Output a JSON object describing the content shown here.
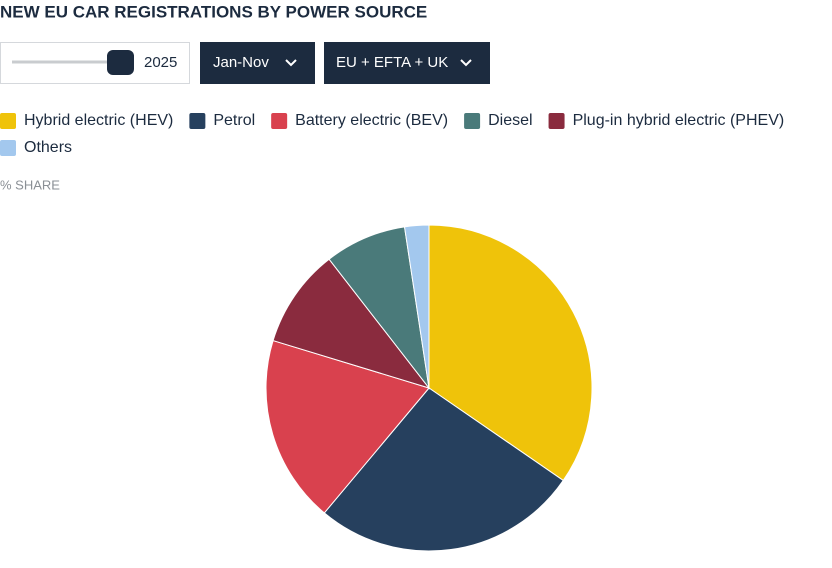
{
  "chart_data": {
    "type": "pie",
    "title": "NEW EU CAR REGISTRATIONS BY POWER SOURCE",
    "controls": {
      "year": "2025",
      "period": "Jan-Nov",
      "region": "EU + EFTA + UK"
    },
    "unit_label": "% SHARE",
    "categories": [
      "Hybrid electric (HEV)",
      "Petrol",
      "Battery electric (BEV)",
      "Diesel",
      "Plug-in hybrid electric (PHEV)",
      "Others"
    ],
    "values": [
      34.6,
      26.5,
      18.6,
      8.1,
      9.8,
      2.4
    ],
    "colors": [
      "#efc30a",
      "#26405e",
      "#d9414e",
      "#4a7a7a",
      "#8a2b3e",
      "#a3c8ee"
    ]
  }
}
